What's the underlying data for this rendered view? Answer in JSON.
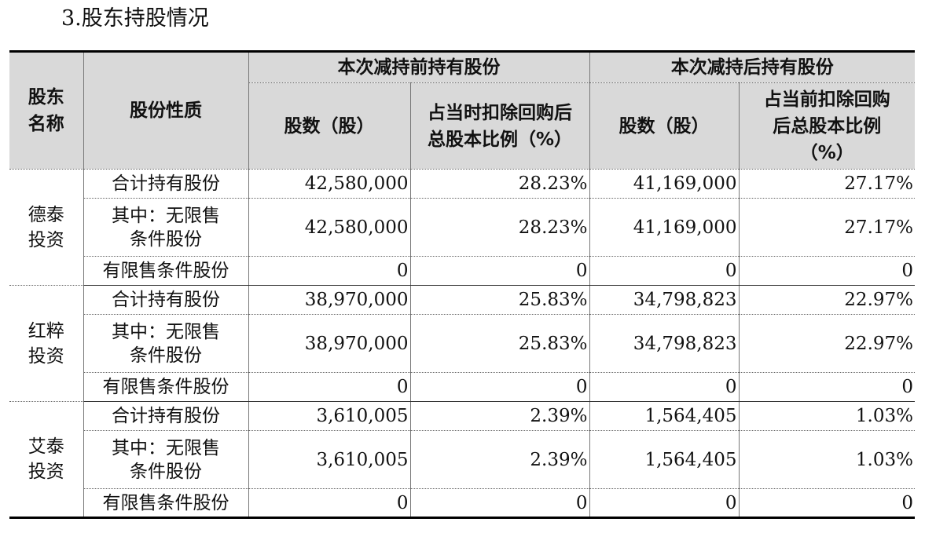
{
  "heading": "3.股东持股情况",
  "headers": {
    "shareholder_name": "股东\n名称",
    "share_nature": "股份性质",
    "before_group": "本次减持前持有股份",
    "after_group": "本次减持后持有股份",
    "before_shares": "股数（股）",
    "before_ratio": "占当时扣除回购后\n总股本比例（%）",
    "after_shares": "股数（股）",
    "after_ratio": "占当前扣除回购\n后总股本比例\n（%）"
  },
  "shareholders": [
    {
      "name": "德泰\n投资",
      "rows": [
        {
          "label": "合计持有股份",
          "before_shares": "42,580,000",
          "before_ratio": "28.23%",
          "after_shares": "41,169,000",
          "after_ratio": "27.17%"
        },
        {
          "label": "其中：无限售\n条件股份",
          "before_shares": "42,580,000",
          "before_ratio": "28.23%",
          "after_shares": "41,169,000",
          "after_ratio": "27.17%"
        },
        {
          "label": "有限售条件股份",
          "before_shares": "0",
          "before_ratio": "0",
          "after_shares": "0",
          "after_ratio": "0"
        }
      ]
    },
    {
      "name": "红粹\n投资",
      "rows": [
        {
          "label": "合计持有股份",
          "before_shares": "38,970,000",
          "before_ratio": "25.83%",
          "after_shares": "34,798,823",
          "after_ratio": "22.97%"
        },
        {
          "label": "其中：无限售\n条件股份",
          "before_shares": "38,970,000",
          "before_ratio": "25.83%",
          "after_shares": "34,798,823",
          "after_ratio": "22.97%"
        },
        {
          "label": "有限售条件股份",
          "before_shares": "0",
          "before_ratio": "0",
          "after_shares": "0",
          "after_ratio": "0"
        }
      ]
    },
    {
      "name": "艾泰\n投资",
      "rows": [
        {
          "label": "合计持有股份",
          "before_shares": "3,610,005",
          "before_ratio": "2.39%",
          "after_shares": "1,564,405",
          "after_ratio": "1.03%"
        },
        {
          "label": "其中：无限售\n条件股份",
          "before_shares": "3,610,005",
          "before_ratio": "2.39%",
          "after_shares": "1,564,405",
          "after_ratio": "1.03%"
        },
        {
          "label": "有限售条件股份",
          "before_shares": "0",
          "before_ratio": "0",
          "after_shares": "0",
          "after_ratio": "0"
        }
      ]
    }
  ]
}
